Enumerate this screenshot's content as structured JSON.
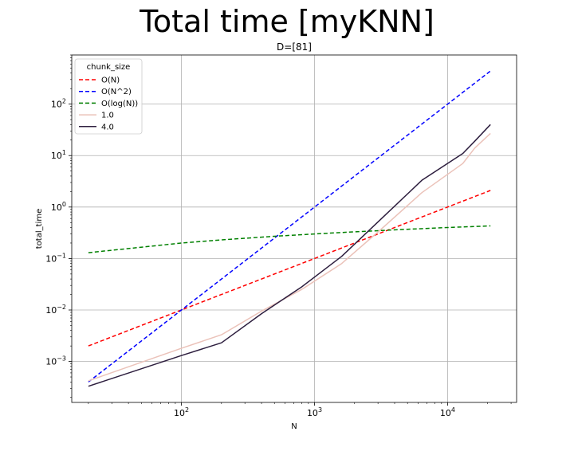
{
  "suptitle": "Total time [myKNN]",
  "chart_data": {
    "type": "line",
    "title": "D=[81]",
    "xlabel": "N",
    "ylabel": "total_time",
    "xscale": "log",
    "yscale": "log",
    "xlim": [
      15,
      33000
    ],
    "ylim": [
      0.00016,
      900
    ],
    "grid": true,
    "xticks": [
      {
        "value": 100,
        "base": "10",
        "exp": "2"
      },
      {
        "value": 1000,
        "base": "10",
        "exp": "3"
      },
      {
        "value": 10000,
        "base": "10",
        "exp": "4"
      }
    ],
    "yticks": [
      {
        "value": 0.001,
        "base": "10",
        "exp": "−3"
      },
      {
        "value": 0.01,
        "base": "10",
        "exp": "−2"
      },
      {
        "value": 0.1,
        "base": "10",
        "exp": "−1"
      },
      {
        "value": 1,
        "base": "10",
        "exp": "0"
      },
      {
        "value": 10,
        "base": "10",
        "exp": "1"
      },
      {
        "value": 100,
        "base": "10",
        "exp": "2"
      }
    ],
    "legend": {
      "title": "chunk_size",
      "position": "upper-left"
    },
    "series": [
      {
        "name": "O(N)",
        "color": "#ff0000",
        "dashed": true,
        "x": [
          20,
          21000
        ],
        "y": [
          0.002,
          2.1
        ]
      },
      {
        "name": "O(N^2)",
        "color": "#0000ff",
        "dashed": true,
        "x": [
          20,
          21000
        ],
        "y": [
          0.0004,
          440
        ]
      },
      {
        "name": "O(log(N))",
        "color": "#008000",
        "dashed": true,
        "x": [
          20,
          100,
          200,
          500,
          1000,
          2000,
          5000,
          10000,
          21000
        ],
        "y": [
          0.13,
          0.2,
          0.23,
          0.27,
          0.3,
          0.33,
          0.37,
          0.4,
          0.43
        ]
      },
      {
        "name": "1.0",
        "color": "#ebc2b9",
        "dashed": false,
        "x": [
          20,
          100,
          200,
          400,
          800,
          1600,
          3200,
          6400,
          13000,
          16000,
          21000
        ],
        "y": [
          0.00042,
          0.0018,
          0.0033,
          0.0095,
          0.025,
          0.08,
          0.38,
          1.9,
          7,
          14,
          27
        ]
      },
      {
        "name": "4.0",
        "color": "#2d1e3e",
        "dashed": false,
        "x": [
          20,
          100,
          200,
          400,
          800,
          1600,
          3200,
          6400,
          13000,
          16000,
          21000
        ],
        "y": [
          0.00033,
          0.0013,
          0.0023,
          0.0085,
          0.028,
          0.11,
          0.6,
          3.3,
          11,
          19,
          40
        ]
      }
    ]
  }
}
